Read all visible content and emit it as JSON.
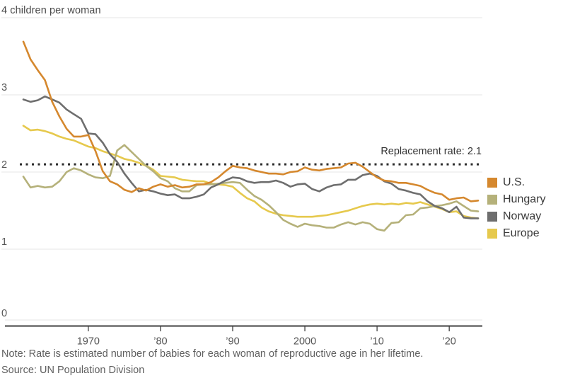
{
  "chart_data": {
    "type": "line",
    "unit_label": "4 children per woman",
    "y_tick_display": [
      "3",
      "2",
      "1",
      "0"
    ],
    "ylim": [
      0,
      4
    ],
    "xlim": [
      1961,
      2024
    ],
    "grid": true,
    "legend_position": "right",
    "reference_line": {
      "value": 2.1,
      "label": "Replacement rate: 2.1",
      "color": "#2b2b2b"
    },
    "x_ticks": [
      {
        "year": 1970,
        "label": "1970"
      },
      {
        "year": 1980,
        "label": "’80"
      },
      {
        "year": 1990,
        "label": "’90"
      },
      {
        "year": 2000,
        "label": "2000"
      },
      {
        "year": 2010,
        "label": "’10"
      },
      {
        "year": 2020,
        "label": "’20"
      }
    ],
    "x": [
      1961,
      1962,
      1963,
      1964,
      1965,
      1966,
      1967,
      1968,
      1969,
      1970,
      1971,
      1972,
      1973,
      1974,
      1975,
      1976,
      1977,
      1978,
      1979,
      1980,
      1981,
      1982,
      1983,
      1984,
      1985,
      1986,
      1987,
      1988,
      1989,
      1990,
      1991,
      1992,
      1993,
      1994,
      1995,
      1996,
      1997,
      1998,
      1999,
      2000,
      2001,
      2002,
      2003,
      2004,
      2005,
      2006,
      2007,
      2008,
      2009,
      2010,
      2011,
      2012,
      2013,
      2014,
      2015,
      2016,
      2017,
      2018,
      2019,
      2020,
      2021,
      2022,
      2023,
      2024
    ],
    "series": [
      {
        "name": "U.S.",
        "color": "#d5882e",
        "values": [
          3.69,
          3.46,
          3.32,
          3.19,
          2.91,
          2.72,
          2.56,
          2.46,
          2.46,
          2.48,
          2.27,
          2.01,
          1.88,
          1.84,
          1.77,
          1.74,
          1.79,
          1.76,
          1.81,
          1.84,
          1.81,
          1.83,
          1.8,
          1.81,
          1.84,
          1.84,
          1.87,
          1.93,
          2.01,
          2.08,
          2.06,
          2.05,
          2.02,
          2.0,
          1.98,
          1.98,
          1.97,
          2.0,
          2.01,
          2.06,
          2.03,
          2.02,
          2.04,
          2.05,
          2.06,
          2.11,
          2.12,
          2.07,
          2.0,
          1.93,
          1.89,
          1.88,
          1.86,
          1.86,
          1.84,
          1.82,
          1.77,
          1.73,
          1.71,
          1.64,
          1.66,
          1.67,
          1.62,
          1.63
        ]
      },
      {
        "name": "Hungary",
        "color": "#b5b17a",
        "values": [
          1.94,
          1.8,
          1.82,
          1.8,
          1.81,
          1.88,
          2.0,
          2.05,
          2.02,
          1.97,
          1.93,
          1.92,
          1.95,
          2.28,
          2.35,
          2.26,
          2.17,
          2.08,
          2.01,
          1.92,
          1.88,
          1.79,
          1.75,
          1.75,
          1.83,
          1.84,
          1.84,
          1.85,
          1.86,
          1.87,
          1.86,
          1.77,
          1.69,
          1.64,
          1.57,
          1.48,
          1.38,
          1.33,
          1.29,
          1.33,
          1.31,
          1.3,
          1.28,
          1.28,
          1.32,
          1.35,
          1.32,
          1.35,
          1.33,
          1.26,
          1.24,
          1.34,
          1.35,
          1.44,
          1.45,
          1.53,
          1.54,
          1.56,
          1.57,
          1.59,
          1.62,
          1.56,
          1.5,
          1.49
        ]
      },
      {
        "name": "Norway",
        "color": "#6e6e6e",
        "values": [
          2.94,
          2.91,
          2.93,
          2.98,
          2.94,
          2.9,
          2.81,
          2.75,
          2.69,
          2.5,
          2.49,
          2.38,
          2.23,
          2.13,
          1.98,
          1.86,
          1.75,
          1.77,
          1.75,
          1.72,
          1.7,
          1.71,
          1.66,
          1.66,
          1.68,
          1.71,
          1.8,
          1.84,
          1.89,
          1.93,
          1.92,
          1.88,
          1.86,
          1.87,
          1.87,
          1.89,
          1.86,
          1.81,
          1.84,
          1.85,
          1.78,
          1.75,
          1.8,
          1.83,
          1.84,
          1.9,
          1.9,
          1.96,
          1.98,
          1.95,
          1.88,
          1.85,
          1.78,
          1.76,
          1.73,
          1.71,
          1.62,
          1.56,
          1.53,
          1.48,
          1.55,
          1.41,
          1.4,
          1.4
        ]
      },
      {
        "name": "Europe",
        "color": "#e6c94d",
        "values": [
          2.6,
          2.54,
          2.55,
          2.53,
          2.5,
          2.46,
          2.43,
          2.41,
          2.37,
          2.33,
          2.31,
          2.27,
          2.24,
          2.21,
          2.17,
          2.15,
          2.12,
          2.08,
          2.03,
          1.95,
          1.94,
          1.93,
          1.9,
          1.89,
          1.88,
          1.88,
          1.85,
          1.84,
          1.83,
          1.81,
          1.73,
          1.66,
          1.62,
          1.54,
          1.49,
          1.46,
          1.44,
          1.43,
          1.42,
          1.42,
          1.42,
          1.43,
          1.44,
          1.46,
          1.48,
          1.5,
          1.53,
          1.56,
          1.58,
          1.59,
          1.58,
          1.59,
          1.58,
          1.6,
          1.59,
          1.61,
          1.58,
          1.55,
          1.52,
          1.48,
          1.49,
          1.43,
          1.41,
          1.4
        ]
      }
    ],
    "style": {
      "grid_color": "#e4e4e4",
      "axis_color": "#3f3f3f",
      "tick_label_color": "#555555",
      "line_width": 2.6
    }
  },
  "note": "Note: Rate is estimated number of babies for each woman of reproductive age in her lifetime.",
  "source": "Source: UN Population Division"
}
